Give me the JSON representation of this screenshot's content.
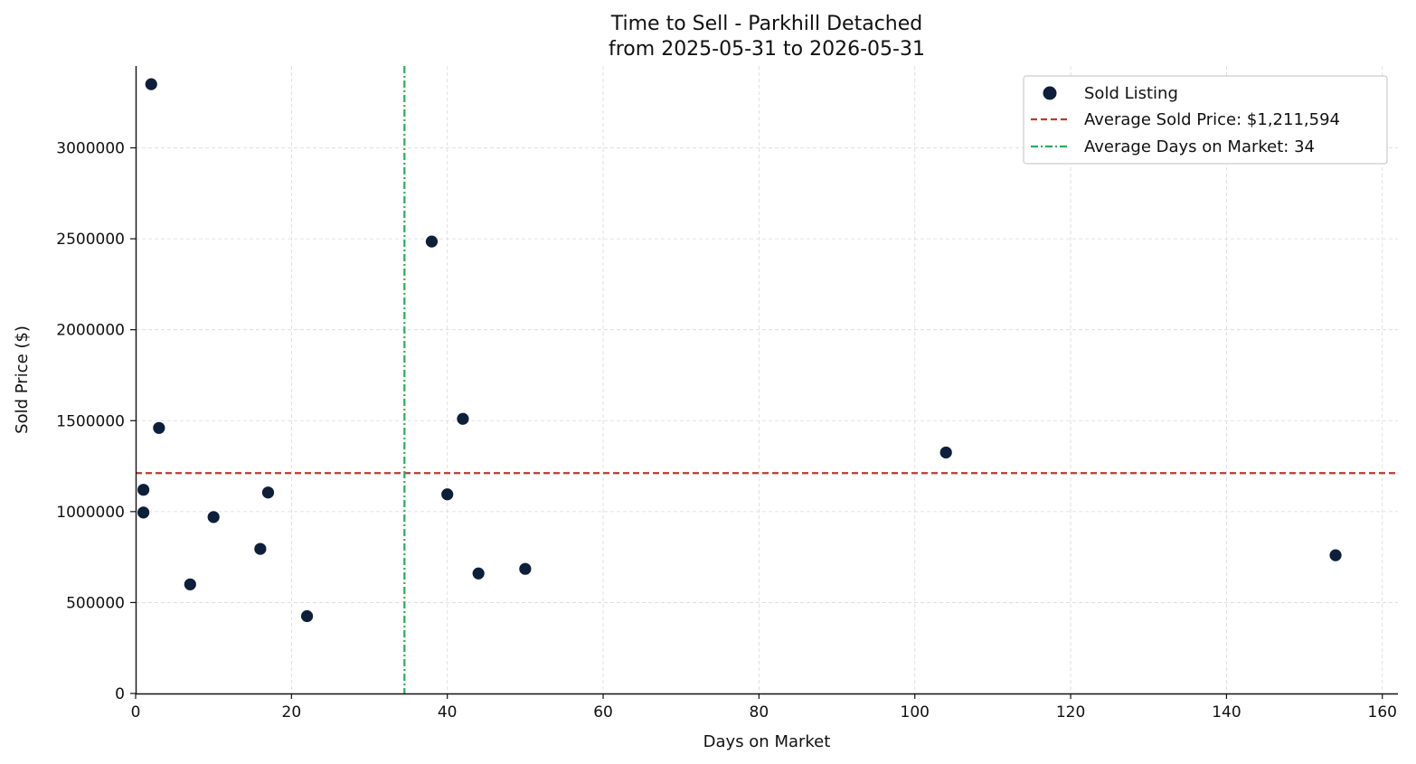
{
  "chart_data": {
    "type": "scatter",
    "title": "Time to Sell - Parkhill Detached",
    "subtitle": "from 2025-05-31 to 2026-05-31",
    "xlabel": "Days on Market",
    "ylabel": "Sold Price ($)",
    "xlim": [
      0,
      162
    ],
    "ylim": [
      0,
      3450000
    ],
    "xticks": [
      0,
      20,
      40,
      60,
      80,
      100,
      120,
      140,
      160
    ],
    "yticks": [
      0,
      500000,
      1000000,
      1500000,
      2000000,
      2500000,
      3000000
    ],
    "grid": true,
    "legend_position": "top-right",
    "series": [
      {
        "name": "Sold Listing",
        "color": "#0d1f3a",
        "points": [
          {
            "x": 2,
            "y": 3350000
          },
          {
            "x": 3,
            "y": 1460000
          },
          {
            "x": 1,
            "y": 1120000
          },
          {
            "x": 1,
            "y": 995000
          },
          {
            "x": 10,
            "y": 970000
          },
          {
            "x": 7,
            "y": 600000
          },
          {
            "x": 16,
            "y": 795000
          },
          {
            "x": 17,
            "y": 1105000
          },
          {
            "x": 22,
            "y": 425000
          },
          {
            "x": 38,
            "y": 2485000
          },
          {
            "x": 42,
            "y": 1510000
          },
          {
            "x": 40,
            "y": 1095000
          },
          {
            "x": 44,
            "y": 660000
          },
          {
            "x": 50,
            "y": 685000
          },
          {
            "x": 104,
            "y": 1325000
          },
          {
            "x": 154,
            "y": 760000
          }
        ]
      }
    ],
    "reference_lines": [
      {
        "name": "Average Sold Price: $1,211,594",
        "orientation": "horizontal",
        "value": 1211594,
        "color": "#c0392b",
        "style": "dashed"
      },
      {
        "name": "Average Days on Market: 34",
        "orientation": "vertical",
        "value": 34.5,
        "color": "#27ae60",
        "style": "dashdot"
      }
    ]
  }
}
